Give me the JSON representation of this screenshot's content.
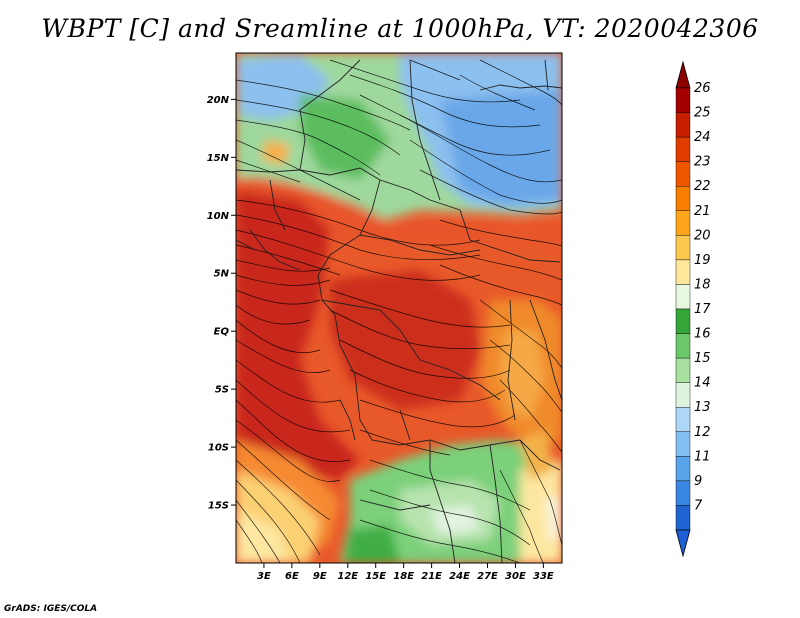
{
  "title": "WBPT [C] and Sreamline at 1000hPa, VT: 2020042306",
  "credit": "GrADS: IGES/COLA",
  "map": {
    "lon_range": [
      0,
      35
    ],
    "lat_range": [
      -20,
      24
    ],
    "lat_ticks": [
      {
        "value": 20,
        "label": "20N"
      },
      {
        "value": 15,
        "label": "15N"
      },
      {
        "value": 10,
        "label": "10N"
      },
      {
        "value": 5,
        "label": "5N"
      },
      {
        "value": 0,
        "label": "EQ"
      },
      {
        "value": -5,
        "label": "5S"
      },
      {
        "value": -10,
        "label": "10S"
      },
      {
        "value": -15,
        "label": "15S"
      }
    ],
    "lon_ticks": [
      {
        "value": 3,
        "label": "3E"
      },
      {
        "value": 6,
        "label": "6E"
      },
      {
        "value": 9,
        "label": "9E"
      },
      {
        "value": 12,
        "label": "12E"
      },
      {
        "value": 15,
        "label": "15E"
      },
      {
        "value": 18,
        "label": "18E"
      },
      {
        "value": 21,
        "label": "21E"
      },
      {
        "value": 24,
        "label": "24E"
      },
      {
        "value": 27,
        "label": "27E"
      },
      {
        "value": 30,
        "label": "30E"
      },
      {
        "value": 33,
        "label": "33E"
      }
    ]
  },
  "colorbar": {
    "labels": [
      "26",
      "25",
      "24",
      "23",
      "22",
      "21",
      "20",
      "19",
      "18",
      "17",
      "16",
      "15",
      "14",
      "13",
      "12",
      "11",
      "9",
      "7"
    ],
    "colors": [
      "#a50000",
      "#c81e00",
      "#e13c00",
      "#f05500",
      "#f87e00",
      "#fca51a",
      "#fdc850",
      "#fde79a",
      "#e8f7e0",
      "#34a639",
      "#6cc96a",
      "#a8e0a0",
      "#dff3e0",
      "#aed6f7",
      "#82bef2",
      "#5aa4ec",
      "#3a87e2",
      "#1f64d0"
    ],
    "top_color": "#8c0000",
    "bottom_color": "#1e5fd6"
  }
}
